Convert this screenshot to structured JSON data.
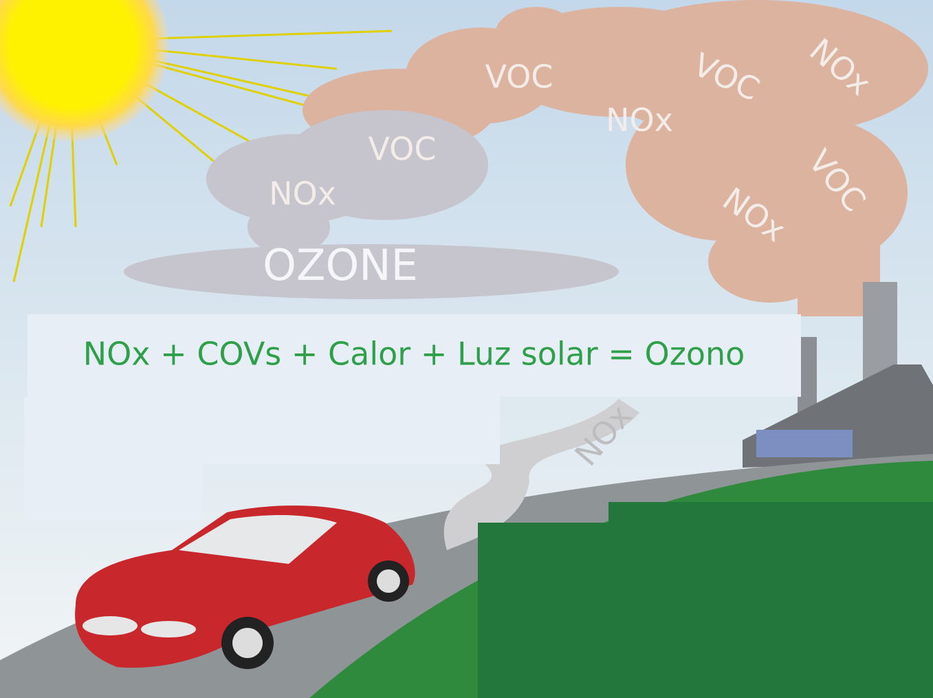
{
  "labels": [
    "VOC",
    "VOC",
    "NOx",
    "NOx",
    "VOC",
    "NOx",
    "VOC",
    "NOx",
    "NOx"
  ],
  "ozone": "OZONE",
  "equation": "NOx + COVs + Calor + Luz solar = Ozono"
}
